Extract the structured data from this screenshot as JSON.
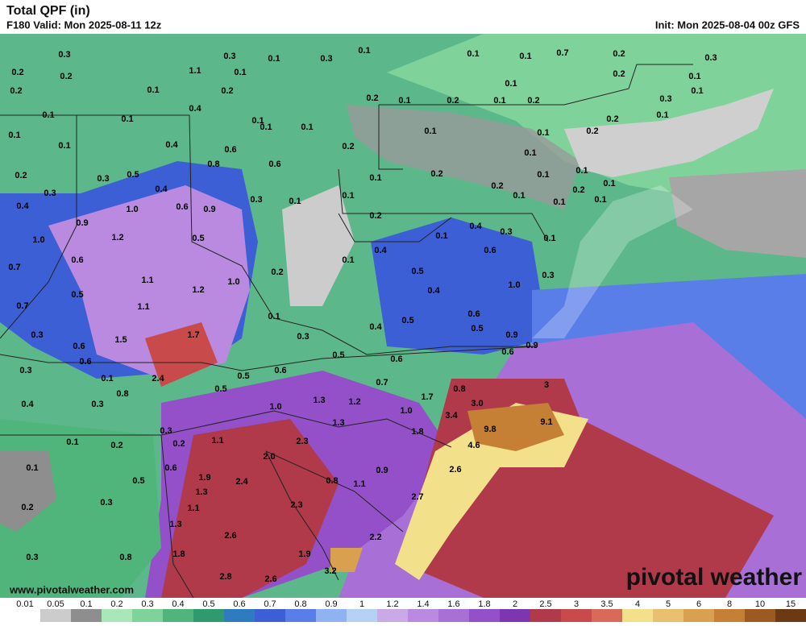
{
  "header": {
    "title": "Total QPF (in)",
    "valid": "F180 Valid: Mon 2025-08-11 12z",
    "init": "Init: Mon 2025-08-04 00z GFS"
  },
  "footer": {
    "website": "www.pivotalweather.com",
    "logo": "pivotal weather"
  },
  "colorbar": {
    "labels": [
      "0.01",
      "0.05",
      "0.1",
      "0.2",
      "0.3",
      "0.4",
      "0.5",
      "0.6",
      "0.7",
      "0.8",
      "0.9",
      "1",
      "1.2",
      "1.4",
      "1.6",
      "1.8",
      "2",
      "2.5",
      "3",
      "3.5",
      "4",
      "5",
      "6",
      "8",
      "10",
      "15"
    ],
    "colors": [
      "#ffffff",
      "#cccccc",
      "#8e8e8e",
      "#a9e6b8",
      "#7fd39a",
      "#4fb57a",
      "#2f9a70",
      "#2f7bbf",
      "#3d5fd6",
      "#5a7ee8",
      "#8fb2f0",
      "#b5d2f5",
      "#c9a9e8",
      "#b98ae0",
      "#a86fd6",
      "#9450c8",
      "#7d36b0",
      "#b0394a",
      "#c84a4a",
      "#d86a5a",
      "#f3e08a",
      "#e8c070",
      "#d9a050",
      "#c58035",
      "#9c5a20",
      "#6b3a12"
    ]
  },
  "map_labels": [
    "0.3",
    "0.2",
    "0.2",
    "0.2",
    "0.1",
    "0.1",
    "0.1",
    "0.2",
    "0.3",
    "0.4",
    "1.0",
    "0.7",
    "0.7",
    "0.3",
    "0.3",
    "0.4",
    "0.1",
    "0.1",
    "0.2",
    "0.3",
    "1.1",
    "0.3",
    "0.1",
    "0.2",
    "0.1",
    "0.4",
    "0.1",
    "0.4",
    "0.6",
    "0.8",
    "0.5",
    "0.3",
    "0.4",
    "1.0",
    "0.6",
    "0.9",
    "0.3",
    "0.9",
    "1.2",
    "0.5",
    "0.6",
    "1.1",
    "1.2",
    "1.0",
    "1.1",
    "0.5",
    "1.7",
    "1.5",
    "0.6",
    "0.6",
    "2.4",
    "0.1",
    "0.8",
    "0.3",
    "0.5",
    "0.5",
    "0.6",
    "1.0",
    "1.3",
    "1.2",
    "1.3",
    "0.7",
    "1.7",
    "0.8",
    "1.0",
    "1.8",
    "3.0",
    "3.4",
    "4.6",
    "9.8",
    "9.1",
    "3",
    "2.6",
    "2.7",
    "0.9",
    "1.1",
    "0.8",
    "2.3",
    "2.0",
    "2.4",
    "1.9",
    "1.3",
    "1.1",
    "1.3",
    "1.8",
    "2.6",
    "2.8",
    "2.6",
    "1.9",
    "2.3",
    "2.2",
    "3.2",
    "0.3",
    "0.2",
    "1.1",
    "0.6",
    "0.5",
    "0.3",
    "0.2",
    "0.8",
    "0.1",
    "0.3",
    "0.1",
    "0.1",
    "0.1",
    "0.7",
    "0.2",
    "0.3",
    "0.2",
    "0.1",
    "0.1",
    "0.1",
    "0.2",
    "0.1",
    "0.2",
    "0.1",
    "0.2",
    "0.3",
    "0.1",
    "0.2",
    "0.2",
    "0.1",
    "0.1",
    "0.1",
    "0.2",
    "0.1",
    "0.1",
    "0.1",
    "0.6",
    "0.1",
    "0.1",
    "0.1",
    "0.2",
    "0.2",
    "0.1",
    "0.1",
    "0.1",
    "0.2",
    "0.1",
    "0.1",
    "0.1",
    "0.2",
    "0.4",
    "0.3",
    "0.1",
    "0.1",
    "0.1",
    "0.4",
    "0.2",
    "0.5",
    "0.6",
    "0.4",
    "1.0",
    "0.3",
    "0.6",
    "0.1",
    "0.3",
    "0.4",
    "0.5",
    "0.5",
    "0.9",
    "0.5",
    "0.6",
    "0.6",
    "0.9"
  ]
}
